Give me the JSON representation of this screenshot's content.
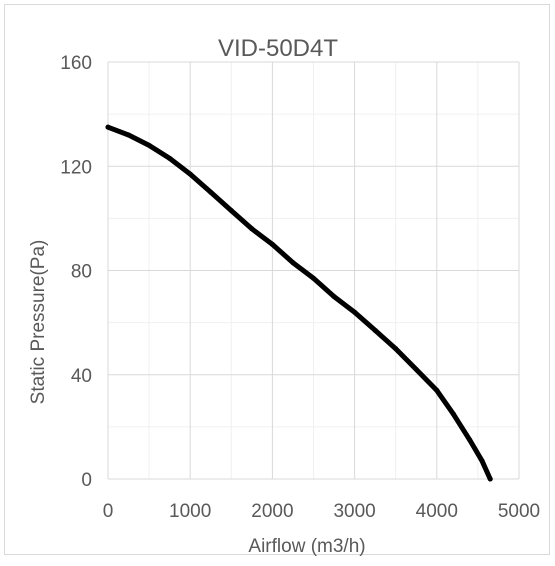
{
  "chart_data": {
    "type": "line",
    "title": "VID-50D4T",
    "xlabel": "Airflow (m3/h)",
    "ylabel": "Static Pressure(Pa)",
    "xlim": [
      0,
      5000
    ],
    "ylim": [
      0,
      160
    ],
    "xticks": [
      0,
      1000,
      2000,
      3000,
      4000,
      5000
    ],
    "yticks": [
      0,
      40,
      80,
      120,
      160
    ],
    "x_minor_step": 500,
    "y_minor_step": 20,
    "grid": true,
    "legend": "none",
    "series": [
      {
        "color": "#000000",
        "x": [
          0,
          250,
          500,
          750,
          1000,
          1250,
          1500,
          1750,
          2000,
          2250,
          2500,
          2750,
          3000,
          3250,
          3500,
          3750,
          4000,
          4200,
          4400,
          4550,
          4650
        ],
        "y": [
          135,
          132,
          128,
          123,
          117,
          110,
          103,
          96,
          90,
          83,
          77,
          70,
          64,
          57,
          50,
          42,
          34,
          25,
          15,
          7,
          0
        ]
      }
    ]
  },
  "style": {
    "background": "#ffffff",
    "frame_border": "#d9d9d9",
    "grid_major": "#d9d9d9",
    "grid_minor": "#f0f0f0",
    "text": "#595959",
    "line": "#000000"
  }
}
